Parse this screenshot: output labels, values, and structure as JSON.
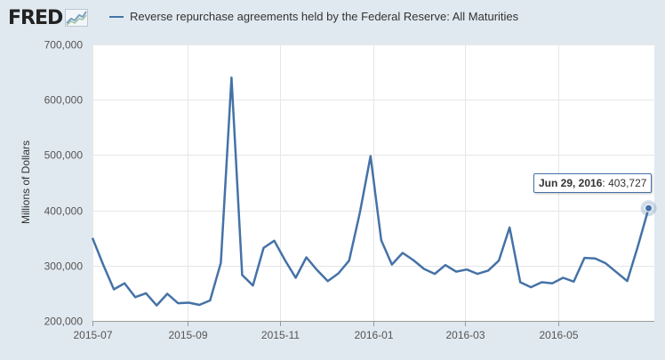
{
  "logo": {
    "text": "FRED"
  },
  "legend": {
    "label": "Reverse repurchase agreements held by the Federal Reserve: All Maturities"
  },
  "tooltip": {
    "date": "Jun 29, 2016",
    "sep": ": ",
    "value": "403,727"
  },
  "colors": {
    "series": "#4572a7",
    "background": "#e1e9f0",
    "plot": "#ffffff"
  },
  "chart_data": {
    "type": "line",
    "title": "",
    "xlabel": "",
    "ylabel": "Millions of Dollars",
    "ylim": [
      200000,
      700000
    ],
    "yticks": [
      200000,
      300000,
      400000,
      500000,
      600000,
      700000
    ],
    "ytick_labels": [
      "200,000",
      "300,000",
      "400,000",
      "500,000",
      "600,000",
      "700,000"
    ],
    "xlim": [
      "2015-07-01",
      "2016-07-01"
    ],
    "xticks": [
      "2015-07-01",
      "2015-09-01",
      "2015-11-01",
      "2016-01-01",
      "2016-03-01",
      "2016-05-01"
    ],
    "xtick_labels": [
      "2015-07",
      "2015-09",
      "2015-11",
      "2016-01",
      "2016-03",
      "2016-05"
    ],
    "grid": true,
    "legend_position": "top",
    "series": [
      {
        "name": "Reverse repurchase agreements held by the Federal Reserve: All Maturities",
        "x": [
          "2015-07-01",
          "2015-07-08",
          "2015-07-15",
          "2015-07-22",
          "2015-07-29",
          "2015-08-05",
          "2015-08-12",
          "2015-08-19",
          "2015-08-26",
          "2015-09-02",
          "2015-09-09",
          "2015-09-16",
          "2015-09-23",
          "2015-09-30",
          "2015-10-07",
          "2015-10-14",
          "2015-10-21",
          "2015-10-28",
          "2015-11-04",
          "2015-11-11",
          "2015-11-18",
          "2015-11-25",
          "2015-12-02",
          "2015-12-09",
          "2015-12-16",
          "2015-12-23",
          "2015-12-30",
          "2016-01-06",
          "2016-01-13",
          "2016-01-20",
          "2016-01-27",
          "2016-02-03",
          "2016-02-10",
          "2016-02-17",
          "2016-02-24",
          "2016-03-02",
          "2016-03-09",
          "2016-03-16",
          "2016-03-23",
          "2016-03-30",
          "2016-04-06",
          "2016-04-13",
          "2016-04-20",
          "2016-04-27",
          "2016-05-04",
          "2016-05-11",
          "2016-05-18",
          "2016-05-25",
          "2016-06-01",
          "2016-06-08",
          "2016-06-15",
          "2016-06-22",
          "2016-06-29"
        ],
        "values": [
          350000,
          302000,
          257000,
          268000,
          243000,
          250000,
          228000,
          249000,
          232000,
          233000,
          229000,
          237000,
          305000,
          640000,
          283000,
          264000,
          332000,
          345000,
          310000,
          278000,
          315000,
          292000,
          272000,
          286000,
          309000,
          396000,
          498000,
          346000,
          302000,
          323000,
          310000,
          294000,
          285000,
          301000,
          289000,
          293000,
          285000,
          291000,
          309000,
          369000,
          270000,
          261000,
          270000,
          268000,
          278000,
          271000,
          314000,
          313000,
          304000,
          288000,
          272000,
          335000,
          403727
        ]
      }
    ]
  }
}
